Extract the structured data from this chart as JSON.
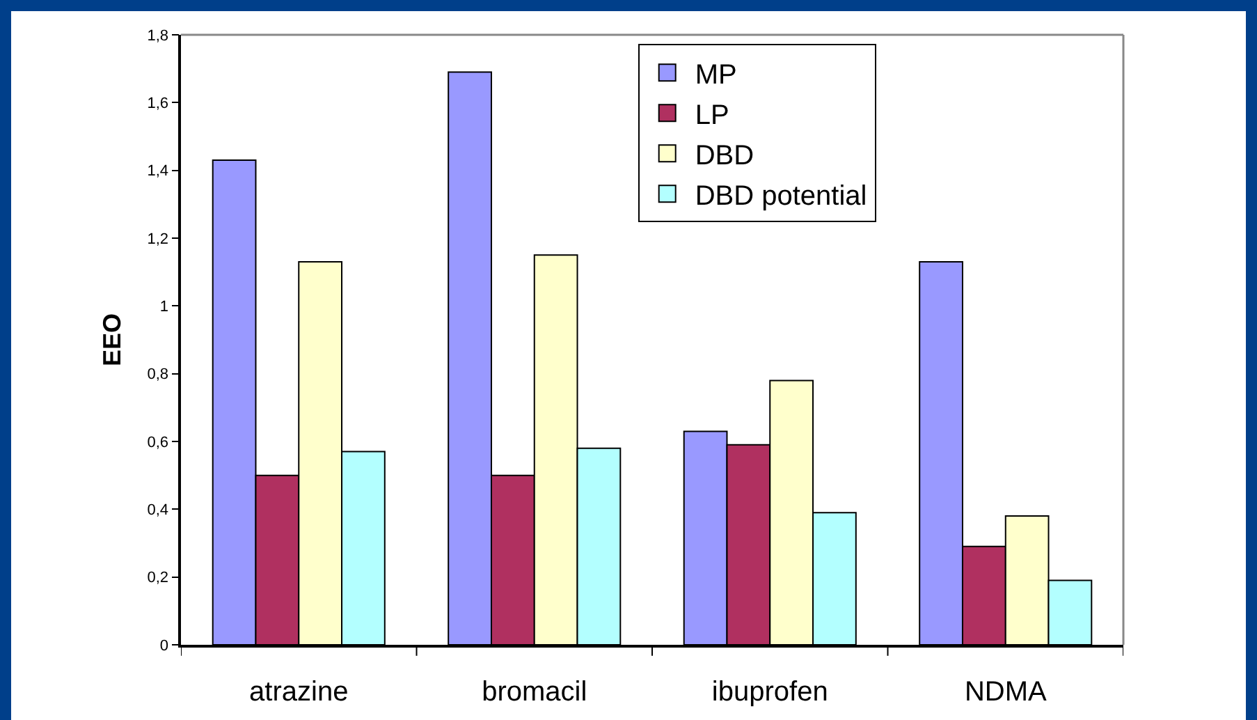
{
  "chart_data": {
    "type": "bar",
    "ylabel": "EEO",
    "categories": [
      "atrazine",
      "bromacil",
      "ibuprofen",
      "NDMA"
    ],
    "series": [
      {
        "name": "MP",
        "color": "#9999ff",
        "values": [
          1.43,
          1.69,
          0.63,
          1.13
        ]
      },
      {
        "name": "LP",
        "color": "#b03060",
        "values": [
          0.5,
          0.5,
          0.59,
          0.29
        ]
      },
      {
        "name": "DBD",
        "color": "#ffffcc",
        "values": [
          1.13,
          1.15,
          0.78,
          0.38
        ]
      },
      {
        "name": "DBD potential",
        "color": "#b3ffff",
        "values": [
          0.57,
          0.58,
          0.39,
          0.19
        ]
      }
    ],
    "ylim": [
      0,
      1.8
    ],
    "yticks": [
      0,
      {
        "value": 0.2,
        "label": "0,2"
      },
      {
        "value": 0.4,
        "label": "0,4"
      },
      {
        "value": 0.6,
        "label": "0,6"
      },
      {
        "value": 0.8,
        "label": "0,8"
      },
      1,
      {
        "value": 1.2,
        "label": "1,2"
      },
      {
        "value": 1.4,
        "label": "1,4"
      },
      {
        "value": 1.6,
        "label": "1,6"
      },
      {
        "value": 1.8,
        "label": "1,8"
      }
    ],
    "grid": false,
    "legend": "top"
  }
}
